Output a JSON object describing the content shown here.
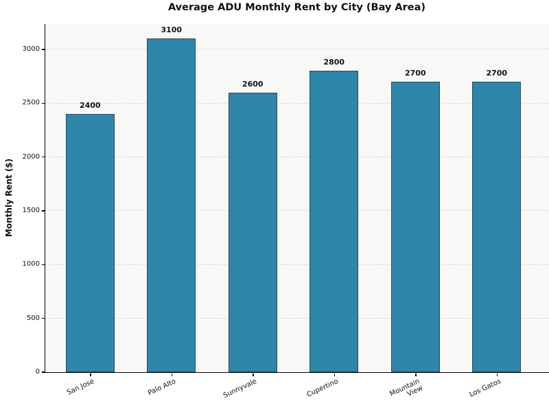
{
  "chart_data": {
    "type": "bar",
    "title": "Average ADU Monthly Rent by City (Bay Area)",
    "ylabel": "Monthly Rent ($)",
    "xlabel": "",
    "categories": [
      "San Jose",
      "Palo Alto",
      "Sunnyvale",
      "Cupertino",
      "Mountain View",
      "Los Gatos"
    ],
    "x_tick_labels": [
      "San Jose",
      "Palo Alto",
      "Sunnyvale",
      "Cupertino",
      "Mountain\nView",
      "Los Gatos"
    ],
    "values": [
      2400,
      3100,
      2600,
      2800,
      2700,
      2700
    ],
    "bar_value_labels": [
      "2400",
      "3100",
      "2600",
      "2800",
      "2700",
      "2700"
    ],
    "yticks": [
      0,
      500,
      1000,
      1500,
      2000,
      2500,
      3000
    ],
    "ylim": [
      0,
      3236
    ],
    "grid": "horizontal-dashed",
    "legend": "none",
    "x_tick_rotation_deg": 25,
    "bar_width_fraction": 0.6,
    "colors": {
      "bar_fill": "#2E86AB",
      "bar_edge": "#2b4957",
      "plot_background": "#f8f8f7",
      "figure_background": "#ffffff",
      "grid_color": "#d7d7d7",
      "axis_color": "#000000",
      "text_color": "#111111"
    }
  }
}
